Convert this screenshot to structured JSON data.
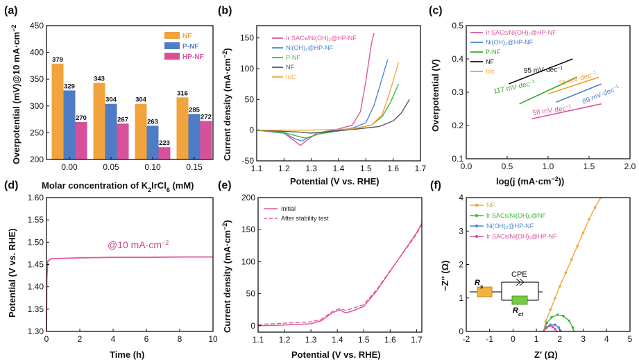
{
  "figure": {
    "panel_labels": [
      "(a)",
      "(b)",
      "(c)",
      "(d)",
      "(e)",
      "(f)"
    ],
    "colors": {
      "NF": "#f0a43b",
      "P-NF": "#4e7cc7",
      "HP-NF": "#d6519a",
      "Ir_SAC": "#e0559b",
      "NiOH": "#4f86d4",
      "P-NF_line": "#3cb83c",
      "NF_line": "#555555",
      "IrC": "#f2a83a",
      "c_Ir": "#d8549b",
      "c_NiOH": "#4f7fc4",
      "c_PNF": "#2fa82f",
      "c_NF": "#111111",
      "c_IrC": "#ef9d2c",
      "e_initial": "#e0559b",
      "f_NF": "#f0a43b",
      "f_IrSAC_NF": "#3cb83c",
      "f_NiOH": "#4f86d4",
      "f_IrSAC_HP": "#d6519a",
      "highlight_label": "#e0309a",
      "annot_d": "#c0478c"
    }
  },
  "chart_data": [
    {
      "panel": "(a)",
      "type": "bar",
      "xlabel": "Molar concentration of K",
      "xlabel_sub2": "2",
      "xlabel_mid": "IrCl",
      "xlabel_sub6": "6",
      "xlabel_end": " (mM)",
      "ylabel": "Overpotential (mV)@10 mA·cm",
      "ylabel_sup": "−2",
      "categories": [
        "0.00",
        "0.05",
        "0.10",
        "0.15"
      ],
      "series": [
        {
          "name": "NF",
          "values": [
            379,
            343,
            304,
            316
          ]
        },
        {
          "name": "P-NF",
          "values": [
            329,
            304,
            263,
            285
          ]
        },
        {
          "name": "HP-NF",
          "values": [
            270,
            267,
            223,
            272
          ]
        }
      ],
      "ylim": [
        200,
        450
      ],
      "yticks": [
        "200",
        "250",
        "300",
        "350",
        "400",
        "450"
      ],
      "legend": [
        "NF",
        "P-NF",
        "HP-NF"
      ]
    },
    {
      "panel": "(b)",
      "type": "line",
      "xlabel": "Potential (V vs. RHE)",
      "ylabel": "Current density (mA·cm",
      "ylabel_sup": "−2",
      "ylabel_end": ")",
      "xlim": [
        1.1,
        1.7
      ],
      "ylim": [
        -50,
        170
      ],
      "xticks": [
        "1.1",
        "1.2",
        "1.3",
        "1.4",
        "1.5",
        "1.6",
        "1.7"
      ],
      "yticks": [
        "-50",
        "0",
        "50",
        "100",
        "150"
      ],
      "legend": [
        "Ir SACs/Ni(OH)₂@HP-NF",
        "Ni(OH)₂@HP-NF",
        "P-NF",
        "NF",
        "Ir/C"
      ],
      "series": [
        {
          "name": "Ir SACs/Ni(OH)₂@HP-NF",
          "x": [
            1.1,
            1.2,
            1.24,
            1.26,
            1.28,
            1.32,
            1.4,
            1.45,
            1.48,
            1.5,
            1.52,
            1.53
          ],
          "y": [
            0,
            -5,
            -18,
            -25,
            -18,
            -5,
            2,
            8,
            30,
            80,
            140,
            158
          ]
        },
        {
          "name": "Ni(OH)₂@HP-NF",
          "x": [
            1.1,
            1.2,
            1.24,
            1.265,
            1.29,
            1.35,
            1.45,
            1.5,
            1.53,
            1.56,
            1.58
          ],
          "y": [
            0,
            -5,
            -14,
            -18,
            -12,
            -3,
            3,
            12,
            40,
            85,
            115
          ]
        },
        {
          "name": "P-NF",
          "x": [
            1.1,
            1.2,
            1.25,
            1.28,
            1.33,
            1.45,
            1.52,
            1.56,
            1.59,
            1.62
          ],
          "y": [
            0,
            -4,
            -10,
            -13,
            -6,
            2,
            8,
            22,
            45,
            75
          ]
        },
        {
          "name": "NF",
          "x": [
            1.1,
            1.25,
            1.3,
            1.45,
            1.55,
            1.6,
            1.63,
            1.66
          ],
          "y": [
            0,
            -3,
            -5,
            1,
            6,
            15,
            28,
            50
          ]
        },
        {
          "name": "Ir/C",
          "x": [
            1.1,
            1.3,
            1.45,
            1.52,
            1.56,
            1.59,
            1.62
          ],
          "y": [
            0,
            0,
            2,
            8,
            25,
            65,
            110
          ]
        }
      ]
    },
    {
      "panel": "(c)",
      "type": "line",
      "xlabel": "log(j (mA·cm",
      "xlabel_sup": "−2",
      "xlabel_end": "))",
      "ylabel": "Overpotential (V)",
      "xlim": [
        0.0,
        2.0
      ],
      "ylim": [
        0.1,
        0.5
      ],
      "xticks": [
        "0.0",
        "0.5",
        "1.0",
        "1.5",
        "2.0"
      ],
      "yticks": [
        "0.1",
        "0.2",
        "0.3",
        "0.4",
        "0.5"
      ],
      "legend": [
        "Ir SACs/Ni(OH)₂@HP-NF",
        "Ni(OH)₂@HP-NF",
        "P-NF",
        "NF",
        "Ir/c"
      ],
      "series": [
        {
          "name": "Ir SACs/Ni(OH)₂@HP-NF",
          "x": [
            0.8,
            1.65
          ],
          "y": [
            0.22,
            0.265
          ],
          "tafel": "58 mV·dec"
        },
        {
          "name": "Ni(OH)₂@HP-NF",
          "x": [
            1.1,
            1.65
          ],
          "y": [
            0.27,
            0.325
          ],
          "tafel": "89 mV·dec"
        },
        {
          "name": "P-NF",
          "x": [
            0.65,
            1.35
          ],
          "y": [
            0.265,
            0.345
          ],
          "tafel": "117 mV·dec"
        },
        {
          "name": "NF",
          "x": [
            0.52,
            1.3
          ],
          "y": [
            0.325,
            0.4
          ],
          "tafel": "95 mV·dec"
        },
        {
          "name": "Ir/c",
          "x": [
            1.0,
            1.62
          ],
          "y": [
            0.295,
            0.345
          ],
          "tafel": "76 mV·dec"
        }
      ],
      "tafel_sup": "−1"
    },
    {
      "panel": "(d)",
      "type": "line",
      "xlabel": "Time (h)",
      "ylabel": "Potential (V vs. RHE)",
      "xlim": [
        0,
        10
      ],
      "ylim": [
        1.3,
        1.6
      ],
      "xticks": [
        "0",
        "2",
        "4",
        "6",
        "8",
        "10"
      ],
      "yticks": [
        "1.30",
        "1.35",
        "1.40",
        "1.45",
        "1.50",
        "1.55",
        "1.60"
      ],
      "annotation": "@10 mA·cm",
      "annotation_sup": "−2",
      "series": [
        {
          "name": "Potential",
          "x": [
            0,
            0.02,
            0.08,
            0.3,
            2,
            4,
            6,
            8,
            10
          ],
          "y": [
            1.3,
            1.42,
            1.458,
            1.463,
            1.465,
            1.466,
            1.466,
            1.467,
            1.467
          ]
        }
      ]
    },
    {
      "panel": "(e)",
      "type": "line",
      "xlabel": "Potential (V vs. RHE)",
      "ylabel": "Current density (mA·cm",
      "ylabel_sup": "−2",
      "ylabel_end": ")",
      "xlim": [
        1.1,
        1.72
      ],
      "ylim": [
        -10,
        200
      ],
      "xticks": [
        "1.1",
        "1.2",
        "1.3",
        "1.4",
        "1.5",
        "1.6",
        "1.7"
      ],
      "yticks": [
        "0",
        "50",
        "100",
        "150",
        "200"
      ],
      "legend": [
        "Initial",
        "After stability test"
      ],
      "series": [
        {
          "name": "Initial",
          "x": [
            1.1,
            1.2,
            1.3,
            1.34,
            1.38,
            1.41,
            1.43,
            1.45,
            1.5,
            1.55,
            1.6,
            1.65,
            1.7,
            1.72
          ],
          "y": [
            0,
            1,
            3,
            8,
            20,
            25,
            20,
            22,
            30,
            55,
            85,
            115,
            145,
            160
          ]
        },
        {
          "name": "After stability test",
          "x": [
            1.1,
            1.2,
            1.3,
            1.34,
            1.38,
            1.41,
            1.43,
            1.45,
            1.5,
            1.55,
            1.6,
            1.65,
            1.7,
            1.72
          ],
          "y": [
            2,
            4,
            6,
            10,
            22,
            27,
            24,
            26,
            33,
            57,
            86,
            114,
            143,
            158
          ]
        }
      ]
    },
    {
      "panel": "(f)",
      "type": "scatter",
      "xlabel": "Z′ (Ω)",
      "ylabel": "−Z″ (Ω)",
      "xlim": [
        -2,
        5
      ],
      "ylim": [
        0,
        4
      ],
      "xticks": [
        "-2",
        "-1",
        "0",
        "1",
        "2",
        "3",
        "4",
        "5"
      ],
      "yticks": [
        "0",
        "1",
        "2",
        "3",
        "4"
      ],
      "legend": [
        "NF",
        "Ir SACs/Ni(OH)₂@NF",
        "Ni(OH)₂@HP-NF",
        "Ir SACs/Ni(OH)₂@HP-NF"
      ],
      "circuit": {
        "rs": "R",
        "rs_sub": "s",
        "cpe": "CPE",
        "rct": "R",
        "rct_sub": "ct"
      },
      "series": [
        {
          "name": "NF",
          "x": [
            1.3,
            1.4,
            1.6,
            1.8,
            2.0,
            2.25,
            2.5,
            2.75,
            3.0,
            3.25,
            3.5,
            3.75
          ],
          "y": [
            0,
            0.3,
            0.65,
            1.0,
            1.35,
            1.75,
            2.15,
            2.55,
            2.95,
            3.35,
            3.7,
            4.0
          ]
        },
        {
          "name": "Ir SACs/Ni(OH)₂@NF",
          "x": [
            1.3,
            1.45,
            1.65,
            1.9,
            2.15,
            2.4,
            2.55,
            2.6
          ],
          "y": [
            0,
            0.25,
            0.42,
            0.5,
            0.46,
            0.32,
            0.12,
            0
          ]
        },
        {
          "name": "Ni(OH)₂@HP-NF",
          "x": [
            1.3,
            1.45,
            1.6,
            1.8,
            1.95,
            2.05
          ],
          "y": [
            0,
            0.13,
            0.2,
            0.2,
            0.12,
            0
          ]
        },
        {
          "name": "Ir SACs/Ni(OH)₂@HP-NF",
          "x": [
            1.3,
            1.42,
            1.55,
            1.7,
            1.8,
            1.85
          ],
          "y": [
            0,
            0.1,
            0.16,
            0.14,
            0.07,
            0
          ]
        }
      ]
    }
  ]
}
